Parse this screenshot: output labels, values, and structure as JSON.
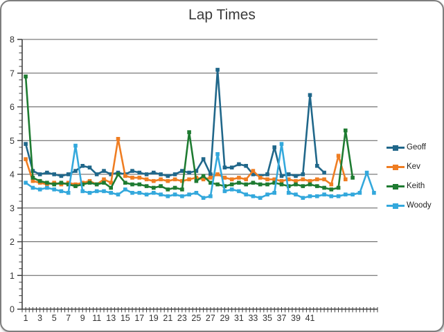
{
  "chart_data": {
    "type": "line",
    "title": "Lap Times",
    "xlabel": "",
    "ylabel": "",
    "legend_position": "right",
    "grid": "horizontal-major",
    "colors": {
      "grid": "#595959",
      "axis": "#3f3f3f",
      "label": "#333333"
    },
    "y_axis": {
      "min": 0,
      "max": 8,
      "major_step": 1,
      "minor_step": 0.2,
      "tick_labels": [
        "0",
        "1",
        "2",
        "3",
        "4",
        "5",
        "6",
        "7",
        "8"
      ]
    },
    "x_axis": {
      "categories_count": 50,
      "label_interval": 2,
      "tick_labels": [
        "1",
        "3",
        "5",
        "7",
        "9",
        "11",
        "13",
        "15",
        "17",
        "19",
        "21",
        "23",
        "25",
        "27",
        "29",
        "31",
        "33",
        "35",
        "37",
        "39",
        "41"
      ]
    },
    "series": [
      {
        "name": "Geoff",
        "color": "#20678A",
        "values": [
          4.9,
          4.1,
          4.0,
          4.05,
          4.0,
          3.95,
          4.0,
          4.1,
          4.25,
          4.2,
          4.0,
          4.1,
          4.0,
          4.05,
          4.0,
          4.1,
          4.05,
          4.0,
          4.05,
          4.0,
          3.95,
          4.0,
          4.1,
          4.05,
          4.1,
          4.45,
          4.0,
          7.1,
          4.2,
          4.2,
          4.3,
          4.25,
          4.0,
          3.95,
          4.0,
          4.8,
          3.95,
          4.0,
          3.95,
          4.0,
          6.35,
          4.25,
          4.05
        ]
      },
      {
        "name": "Kev",
        "color": "#EF7D22",
        "values": [
          4.45,
          3.8,
          3.75,
          3.7,
          3.75,
          3.7,
          3.75,
          3.7,
          3.75,
          3.8,
          3.7,
          3.85,
          3.75,
          5.05,
          3.95,
          3.9,
          3.9,
          3.85,
          3.8,
          3.85,
          3.8,
          3.85,
          3.8,
          3.85,
          3.9,
          3.85,
          3.9,
          4.0,
          3.9,
          3.85,
          3.9,
          3.85,
          4.1,
          3.9,
          3.85,
          3.85,
          3.8,
          3.85,
          3.8,
          3.85,
          3.8,
          3.85,
          3.85,
          3.7,
          4.55,
          3.85
        ]
      },
      {
        "name": "Keith",
        "color": "#1E7B31",
        "values": [
          6.9,
          3.9,
          3.8,
          3.75,
          3.7,
          3.75,
          3.7,
          3.65,
          3.7,
          3.75,
          3.7,
          3.75,
          3.6,
          4.0,
          3.75,
          3.7,
          3.7,
          3.65,
          3.6,
          3.65,
          3.55,
          3.6,
          3.55,
          5.25,
          3.8,
          3.95,
          3.75,
          3.7,
          3.65,
          3.7,
          3.75,
          3.7,
          3.75,
          3.7,
          3.7,
          3.75,
          3.7,
          3.65,
          3.7,
          3.65,
          3.7,
          3.65,
          3.6,
          3.55,
          3.6,
          5.3,
          3.9
        ]
      },
      {
        "name": "Woody",
        "color": "#33A8DC",
        "values": [
          3.75,
          3.6,
          3.55,
          3.6,
          3.55,
          3.5,
          3.45,
          4.85,
          3.5,
          3.45,
          3.5,
          3.5,
          3.45,
          3.4,
          3.55,
          3.45,
          3.45,
          3.4,
          3.45,
          3.4,
          3.35,
          3.4,
          3.35,
          3.4,
          3.45,
          3.3,
          3.35,
          4.6,
          3.5,
          3.55,
          3.5,
          3.4,
          3.35,
          3.3,
          3.4,
          3.45,
          4.9,
          3.45,
          3.4,
          3.3,
          3.35,
          3.35,
          3.4,
          3.35,
          3.35,
          3.4,
          3.4,
          3.45,
          4.05,
          3.45
        ]
      }
    ]
  }
}
